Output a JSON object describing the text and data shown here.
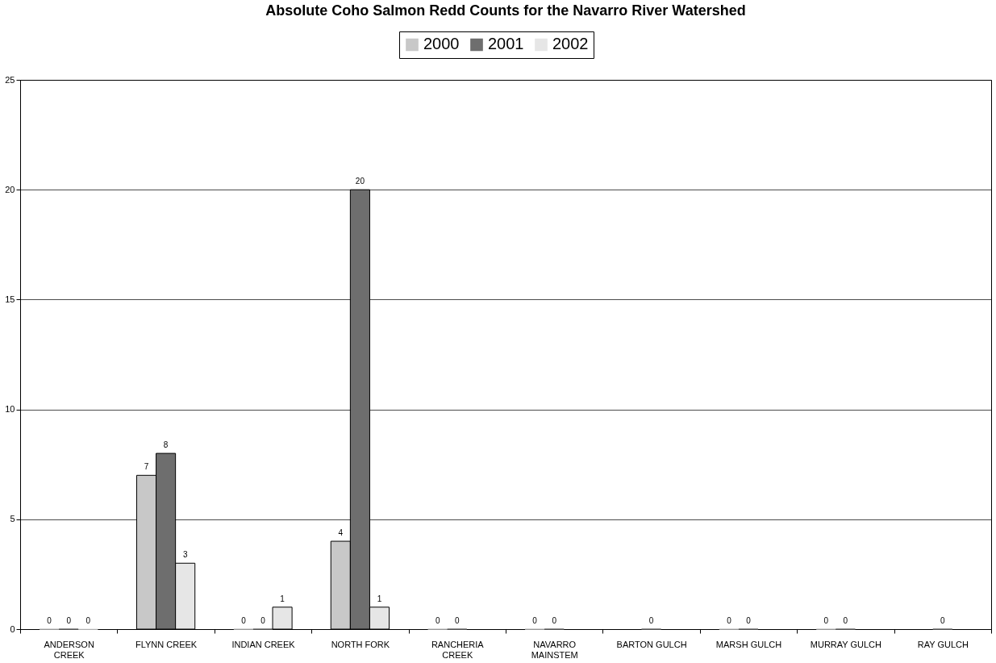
{
  "chart_data": {
    "type": "bar",
    "title": "Absolute Coho Salmon Redd Counts for the Navarro River Watershed",
    "categories": [
      "ANDERSON CREEK",
      "FLYNN CREEK",
      "INDIAN CREEK",
      "NORTH FORK",
      "RANCHERIA CREEK",
      "NAVARRO MAINSTEM",
      "BARTON GULCH",
      "MARSH GULCH",
      "MURRAY GULCH",
      "RAY GULCH"
    ],
    "series": [
      {
        "name": "2000",
        "color": "#c8c8c8",
        "values": [
          0,
          7,
          0,
          4,
          0,
          0,
          null,
          0,
          0,
          null
        ]
      },
      {
        "name": "2001",
        "color": "#6e6e6e",
        "values": [
          0,
          8,
          0,
          20,
          0,
          0,
          0,
          0,
          0,
          0
        ]
      },
      {
        "name": "2002",
        "color": "#e6e6e6",
        "values": [
          0,
          3,
          1,
          1,
          null,
          null,
          null,
          null,
          null,
          null
        ]
      }
    ],
    "ylim": [
      0,
      25
    ],
    "yticks": [
      0,
      5,
      10,
      15,
      20,
      25
    ],
    "grid": "y",
    "legend": "top",
    "data_labels": true
  }
}
